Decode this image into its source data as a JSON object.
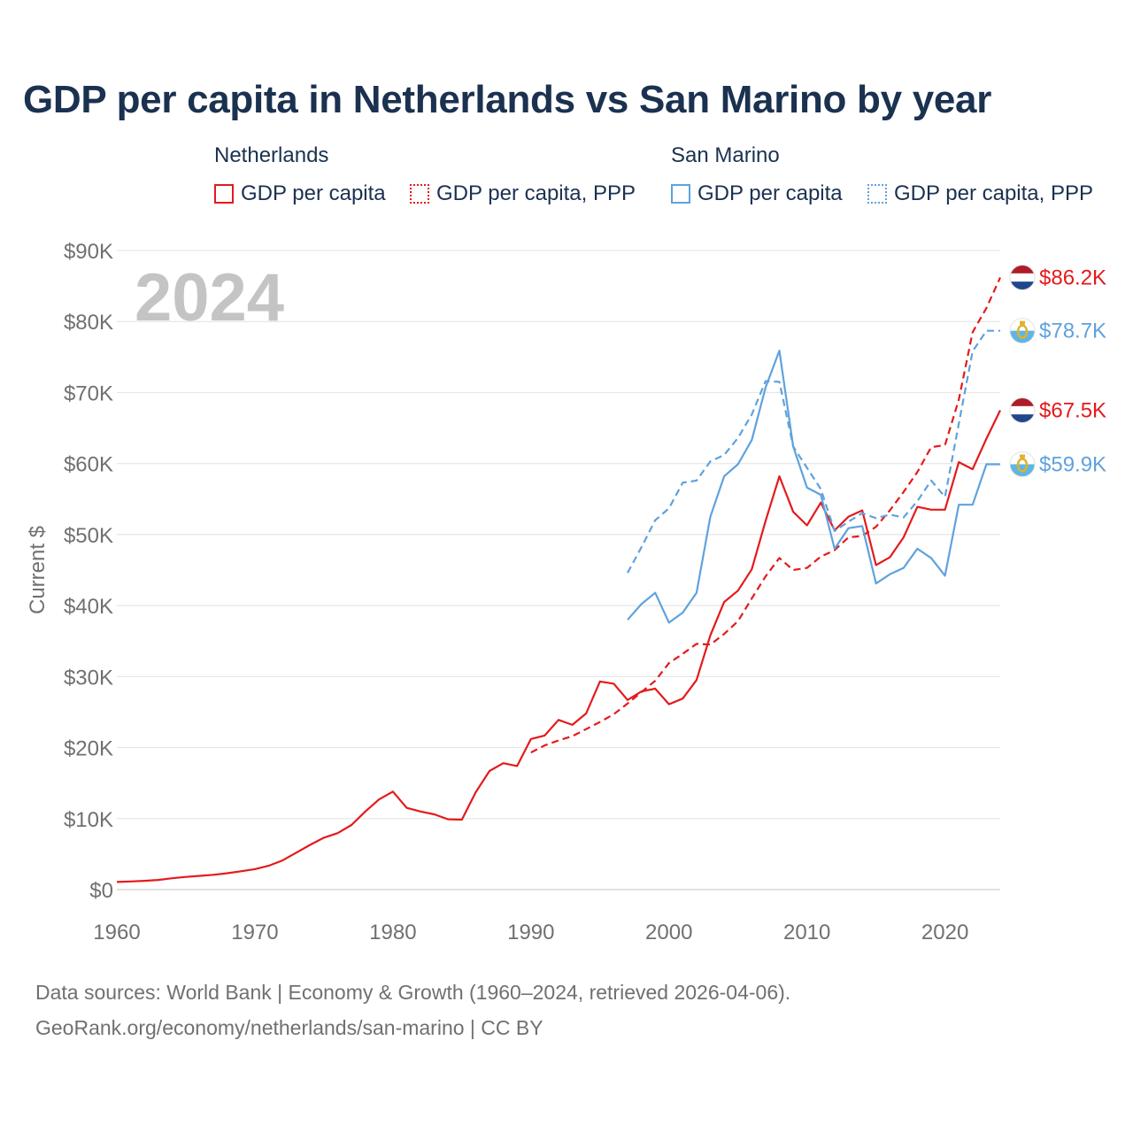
{
  "title": "GDP per capita in Netherlands vs San Marino by year",
  "legend": {
    "groups": [
      {
        "name": "Netherlands",
        "items": [
          {
            "label": "GDP per capita",
            "style": "solid",
            "color": "#e41a1c"
          },
          {
            "label": "GDP per capita, PPP",
            "style": "dotted",
            "color": "#e41a1c"
          }
        ]
      },
      {
        "name": "San Marino",
        "items": [
          {
            "label": "GDP per capita",
            "style": "solid",
            "color": "#5fa2dd"
          },
          {
            "label": "GDP per capita, PPP",
            "style": "dotted",
            "color": "#5fa2dd"
          }
        ]
      }
    ]
  },
  "year_watermark": "2024",
  "sources_line1": "Data sources: World Bank | Economy & Growth (1960–2024, retrieved 2026-04-06).",
  "sources_line2": "GeoRank.org/economy/netherlands/san-marino | CC BY",
  "chart_data": {
    "type": "line",
    "title": "GDP per capita in Netherlands vs San Marino by year",
    "xlabel": "",
    "ylabel": "Current $",
    "xlim": [
      1960,
      2024
    ],
    "ylim": [
      0,
      90000
    ],
    "x_ticks": [
      1960,
      1970,
      1980,
      1990,
      2000,
      2010,
      2020
    ],
    "x_tick_labels": [
      "1960",
      "1970",
      "1980",
      "1990",
      "2000",
      "2010",
      "2020"
    ],
    "y_ticks": [
      0,
      10000,
      20000,
      30000,
      40000,
      50000,
      60000,
      70000,
      80000,
      90000
    ],
    "y_tick_labels": [
      "$0",
      "$10K",
      "$20K",
      "$30K",
      "$40K",
      "$50K",
      "$60K",
      "$70K",
      "$80K",
      "$90K"
    ],
    "grid": true,
    "series": [
      {
        "name": "Netherlands GDP per capita",
        "color": "#e41a1c",
        "dash": "solid",
        "end_label": "$67.5K",
        "flag": "netherlands",
        "x_start": 1960,
        "values": [
          1070,
          1150,
          1240,
          1360,
          1600,
          1780,
          1930,
          2080,
          2300,
          2580,
          2880,
          3350,
          4100,
          5200,
          6300,
          7300,
          7950,
          9100,
          11000,
          12700,
          13800,
          11500,
          11000,
          10600,
          9900,
          9850,
          13700,
          16700,
          17800,
          17400,
          21200,
          21700,
          23900,
          23200,
          24800,
          29300,
          29000,
          26700,
          27900,
          28300,
          26100,
          26900,
          29500,
          35800,
          40500,
          42100,
          45100,
          51900,
          58200,
          53200,
          51300,
          54500,
          50600,
          52500,
          53400,
          45700,
          46800,
          49600,
          53900,
          53500,
          53500,
          60200,
          59200,
          63500,
          67500
        ]
      },
      {
        "name": "Netherlands GDP per capita, PPP",
        "color": "#e41a1c",
        "dash": "dashed",
        "end_label": "$86.2K",
        "flag": "netherlands",
        "x_start": 1990,
        "values": [
          19300,
          20300,
          21000,
          21600,
          22600,
          23600,
          24700,
          26200,
          27800,
          29400,
          31900,
          33200,
          34600,
          34500,
          36000,
          37800,
          41000,
          44100,
          46700,
          45000,
          45300,
          46900,
          47800,
          49600,
          49800,
          51100,
          53400,
          56000,
          58800,
          62300,
          62600,
          69000,
          78500,
          81900,
          86200
        ]
      },
      {
        "name": "San Marino GDP per capita",
        "color": "#5fa2dd",
        "dash": "solid",
        "end_label": "$59.9K",
        "flag": "san-marino",
        "x_start": 1997,
        "values": [
          38000,
          40200,
          41800,
          37600,
          39000,
          41800,
          52500,
          58200,
          59900,
          63300,
          70700,
          75900,
          62400,
          56600,
          55600,
          48000,
          50900,
          51200,
          43100,
          44400,
          45300,
          48000,
          46700,
          44200,
          54200,
          54200,
          59900,
          59900
        ]
      },
      {
        "name": "San Marino GDP per capita, PPP",
        "color": "#5fa2dd",
        "dash": "dashed",
        "end_label": "$78.7K",
        "flag": "san-marino",
        "x_start": 1997,
        "values": [
          44600,
          48200,
          52000,
          53700,
          57300,
          57600,
          60300,
          61200,
          63600,
          66900,
          71600,
          71500,
          62400,
          59400,
          56400,
          50500,
          51800,
          53000,
          52300,
          52800,
          52400,
          54700,
          57600,
          55300,
          65600,
          75800,
          78700,
          78700
        ]
      }
    ]
  }
}
